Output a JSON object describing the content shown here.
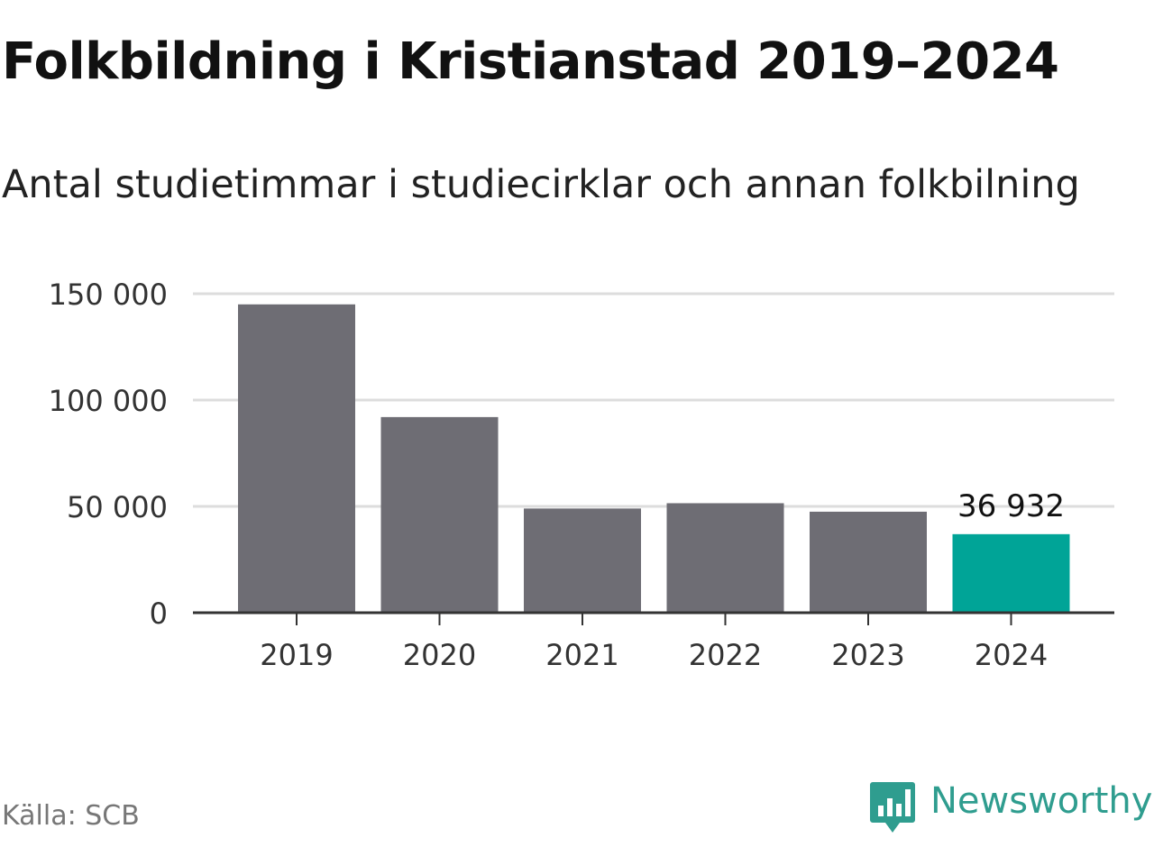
{
  "title": "Folkbildning i Kristianstad 2019–2024",
  "subtitle": "Antal studietimmar i studiecirklar och annan folkbilning",
  "source": "Källa: SCB",
  "brand": {
    "name": "Newsworthy",
    "color": "#2f9d8f",
    "icon": "newsworthy-logo-icon"
  },
  "colors": {
    "bar": "#6e6d74",
    "highlight": "#00a497",
    "grid": "#dddddd",
    "axis": "#333333"
  },
  "chart_data": {
    "type": "bar",
    "categories": [
      "2019",
      "2020",
      "2021",
      "2022",
      "2023",
      "2024"
    ],
    "values": [
      145000,
      92000,
      49000,
      51500,
      47500,
      36932
    ],
    "highlight_index": 5,
    "data_labels": [
      {
        "index": 5,
        "text": "36 932"
      }
    ],
    "ylim": [
      0,
      150000
    ],
    "yticks": [
      0,
      50000,
      100000,
      150000
    ],
    "ytick_labels": [
      "0",
      "50 000",
      "100 000",
      "150 000"
    ],
    "grid": true,
    "xlabel": "",
    "ylabel": ""
  }
}
